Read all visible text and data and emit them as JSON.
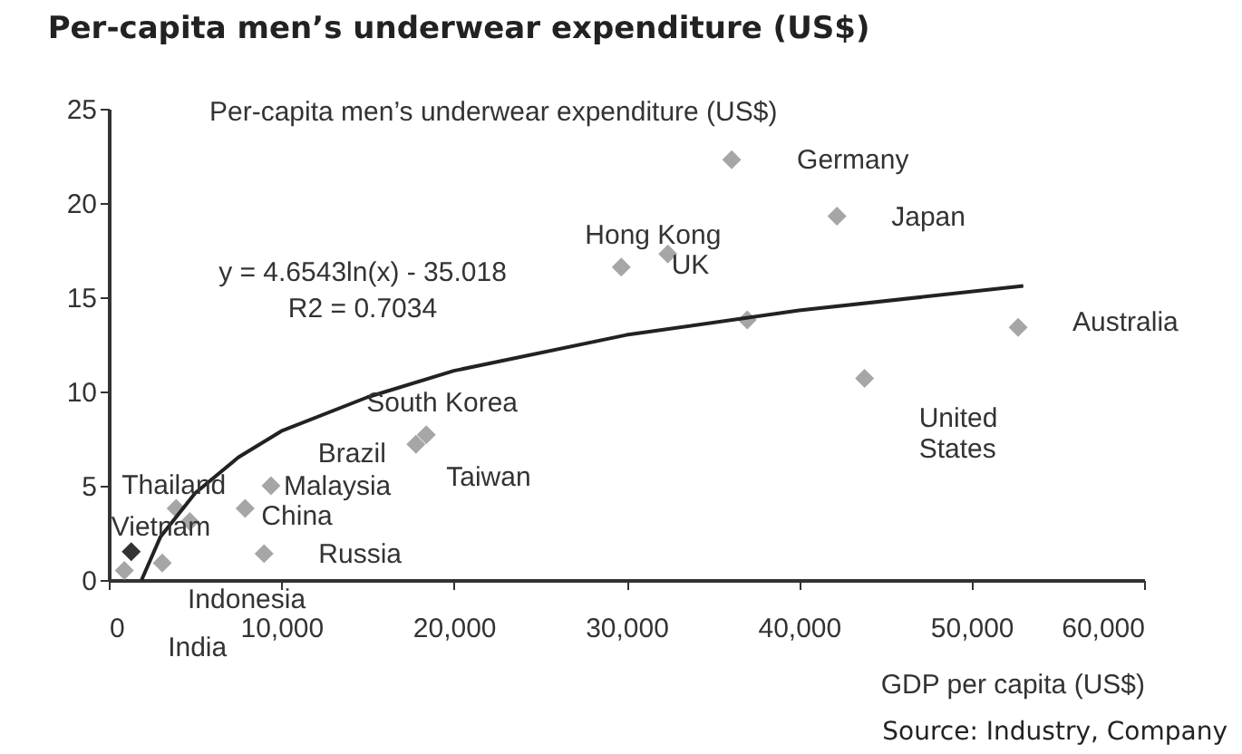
{
  "chart_data": {
    "type": "scatter",
    "title": "Per-capita men’s underwear expenditure (US$)",
    "ylabel": "Per-capita men’s underwear expenditure (US$)",
    "xlabel": "GDP per capita (US$)",
    "grid": false,
    "xlim": [
      0,
      60000
    ],
    "ylim": [
      0,
      25
    ],
    "xticks": [
      0,
      {
        "value": 10000,
        "label": "10,000"
      },
      {
        "value": 20000,
        "label": "20,000"
      },
      {
        "value": 30000,
        "label": "30,000"
      },
      {
        "value": 40000,
        "label": "40,000"
      },
      {
        "value": 50000,
        "label": "50,000"
      },
      {
        "value": 60000,
        "label": "60,000"
      }
    ],
    "yticks": [
      0,
      5,
      10,
      15,
      20,
      25
    ],
    "series": [
      {
        "marker": "diamond",
        "x": [
          36100,
          42200,
          29700,
          32400,
          37000,
          52700,
          43800,
          18400,
          17800,
          9400,
          3900,
          4700,
          7900,
          9000,
          1300,
          3100,
          900
        ],
        "values": [
          22.3,
          19.3,
          16.6,
          17.3,
          13.8,
          13.4,
          10.7,
          7.7,
          7.2,
          5.0,
          3.8,
          3.1,
          3.8,
          1.4,
          1.5,
          0.9,
          0.5
        ],
        "colors": [
          "#a6a6a6",
          "#a6a6a6",
          "#a6a6a6",
          "#a6a6a6",
          "#a6a6a6",
          "#a6a6a6",
          "#a6a6a6",
          "#a6a6a6",
          "#a6a6a6",
          "#a6a6a6",
          "#a6a6a6",
          "#a6a6a6",
          "#a6a6a6",
          "#a6a6a6",
          "#333333",
          "#a6a6a6",
          "#a6a6a6"
        ]
      },
      {
        "type": "line",
        "color": "#222222",
        "x": [
          1900,
          3000,
          5000,
          7500,
          10000,
          15000,
          20000,
          30000,
          40000,
          53000
        ],
        "values": [
          0,
          2.3,
          4.6,
          6.5,
          7.9,
          9.7,
          11.1,
          13.0,
          14.3,
          15.6
        ]
      }
    ],
    "annotations": [
      {
        "text": "Germany",
        "x": 36100,
        "y": 22.3
      },
      {
        "text": "Japan",
        "x": 42200,
        "y": 19.3
      },
      {
        "text": "Hong Kong",
        "x": 29700,
        "y": 16.6
      },
      {
        "text": "UK",
        "x": 32400,
        "y": 17.3
      },
      {
        "text": "Australia",
        "x": 52700,
        "y": 13.4
      },
      {
        "text": "United\nStates",
        "x": 43800,
        "y": 10.7
      },
      {
        "text": "South Korea",
        "x": 18400,
        "y": 7.7
      },
      {
        "text": "Brazil",
        "x": 17800,
        "y": 7.2
      },
      {
        "text": "Taiwan",
        "x": 18400,
        "y": 7.7
      },
      {
        "text": "Thailand",
        "x": 3900,
        "y": 3.8
      },
      {
        "text": "Malaysia",
        "x": 9400,
        "y": 5.0
      },
      {
        "text": "China",
        "x": 7900,
        "y": 3.8
      },
      {
        "text": "Vietnam",
        "x": 1300,
        "y": 1.5
      },
      {
        "text": "Russia",
        "x": 9000,
        "y": 1.4
      },
      {
        "text": "Indonesia",
        "x": 3100,
        "y": 0.9
      },
      {
        "text": "India",
        "x": 900,
        "y": 0.5
      },
      "y = 4.6543ln(x) - 35.018",
      "R2 = 0.7034",
      "Source: Industry, Company"
    ]
  }
}
